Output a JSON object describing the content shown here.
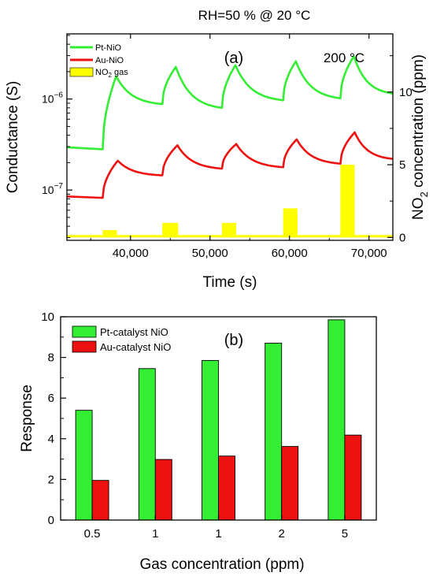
{
  "header": {
    "title": "RH=50 % @ 20 °C"
  },
  "chart_data": [
    {
      "type": "line",
      "panel_label": "(a)",
      "annotation": "200 °C",
      "xlabel": "Time (s)",
      "ylabel_left": "Conductance (S)",
      "ylabel_right_prefix": "NO",
      "ylabel_right_sub": "2",
      "ylabel_right_suffix": " concentration (ppm)",
      "xlim": [
        32000,
        73000
      ],
      "ylim_left": [
        2.8e-08,
        5.2e-06
      ],
      "ylim_right": [
        -0.2,
        14
      ],
      "log_y_left": true,
      "x_ticks": [
        40000,
        50000,
        60000,
        70000
      ],
      "x_tick_labels": [
        "40,000",
        "50,000",
        "60,000",
        "70,000"
      ],
      "y_left_ticks": [
        1e-07,
        1e-06
      ],
      "y_right_ticks": [
        0,
        5,
        10
      ],
      "y_right_tick_labels": [
        "0",
        "5",
        "10"
      ],
      "legend": [
        {
          "label": "Pt-NiO",
          "color": "#33ee33",
          "kind": "line"
        },
        {
          "label": "Au-NiO",
          "color": "#ee1111",
          "kind": "line"
        },
        {
          "label_prefix": "NO",
          "label_sub": "2",
          "label_suffix": " gas",
          "color": "#ffff00",
          "kind": "box"
        }
      ],
      "series": [
        {
          "name": "Pt-NiO",
          "color": "#33ee33",
          "baseline": 2.95e-07,
          "base_end": 2.8e-07,
          "pulses": [
            {
              "start": 36500,
              "peak_t": 38200,
              "peak": 1.78e-06,
              "end": 44000,
              "end_val": 8.8e-07
            },
            {
              "start": 44000,
              "peak_t": 45700,
              "peak": 2.25e-06,
              "end": 51500,
              "end_val": 8e-07
            },
            {
              "start": 51500,
              "peak_t": 53200,
              "peak": 2.35e-06,
              "end": 59200,
              "end_val": 9.7e-07
            },
            {
              "start": 59200,
              "peak_t": 60800,
              "peak": 2.6e-06,
              "end": 66400,
              "end_val": 1.02e-06
            },
            {
              "start": 66400,
              "peak_t": 68100,
              "peak": 2.95e-06,
              "end": 73000,
              "end_val": 1.15e-06
            }
          ]
        },
        {
          "name": "Au-NiO",
          "color": "#ee1111",
          "baseline": 8.5e-08,
          "base_end": 8.2e-08,
          "pulses": [
            {
              "start": 36500,
              "peak_t": 38400,
              "peak": 2.1e-07,
              "end": 44000,
              "end_val": 1.45e-07
            },
            {
              "start": 44000,
              "peak_t": 45900,
              "peak": 3.1e-07,
              "end": 51500,
              "end_val": 1.72e-07
            },
            {
              "start": 51500,
              "peak_t": 53300,
              "peak": 3.2e-07,
              "end": 59200,
              "end_val": 1.78e-07
            },
            {
              "start": 59200,
              "peak_t": 60900,
              "peak": 3.6e-07,
              "end": 66400,
              "end_val": 1.95e-07
            },
            {
              "start": 66400,
              "peak_t": 68200,
              "peak": 4.3e-07,
              "end": 73000,
              "end_val": 2.2e-07
            }
          ]
        }
      ],
      "gas_bars": {
        "name": "NO2 gas",
        "color": "#ffff00",
        "baseline_ppm": 0,
        "pulses": [
          {
            "start": 36500,
            "end": 38300,
            "ppm": 0.5
          },
          {
            "start": 44000,
            "end": 46000,
            "ppm": 1
          },
          {
            "start": 51500,
            "end": 53300,
            "ppm": 1
          },
          {
            "start": 59200,
            "end": 61000,
            "ppm": 2
          },
          {
            "start": 66400,
            "end": 68200,
            "ppm": 5
          }
        ]
      }
    },
    {
      "type": "bar",
      "panel_label": "(b)",
      "xlabel": "Gas concentration (ppm)",
      "ylabel": "Response",
      "ylim": [
        0,
        10
      ],
      "y_ticks": [
        0,
        2,
        4,
        6,
        8,
        10
      ],
      "y_tick_labels": [
        "0",
        "2",
        "4",
        "6",
        "8",
        "10"
      ],
      "categories": [
        "0.5",
        "1",
        "1",
        "2",
        "5"
      ],
      "legend_position": "top-left",
      "series": [
        {
          "name": "Pt-catalyst NiO",
          "color": "#33ee33",
          "values": [
            5.4,
            7.45,
            7.85,
            8.7,
            9.85
          ]
        },
        {
          "name": "Au-catalyst NiO",
          "color": "#ee1111",
          "values": [
            1.95,
            2.98,
            3.15,
            3.62,
            4.18
          ]
        }
      ]
    }
  ]
}
